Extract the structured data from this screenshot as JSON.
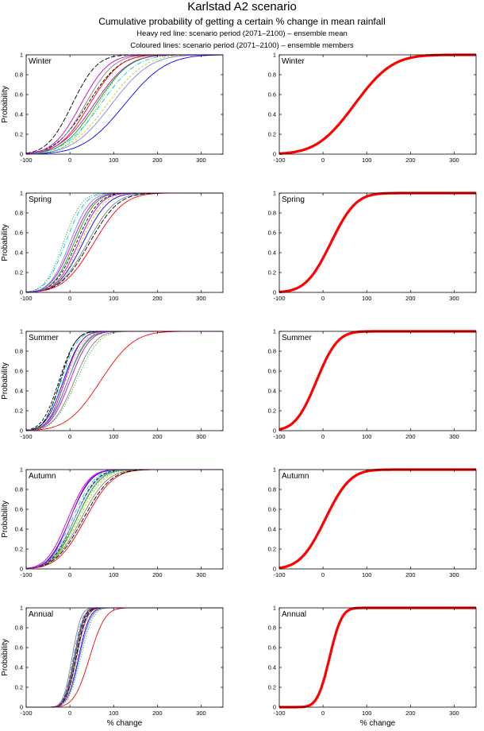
{
  "header": {
    "title": "Karlstad A2 scenario",
    "subtitle": "Cumulative probability of getting a certain % change in mean rainfall",
    "note_heavy": "Heavy red line: scenario period (2071–2100) – ensemble mean",
    "note_coloured": "Coloured lines: scenario period (2071–2100) – ensemble members"
  },
  "colors": {
    "ensemble_mean": "#ff0000"
  },
  "member_colors": [
    "#000000",
    "#0000ff",
    "#00aa00",
    "#ff0000",
    "#00cccc",
    "#cc00cc",
    "#cccc00",
    "#808080",
    "#7f7fff",
    "#000000",
    "#00aa00",
    "#cc00cc"
  ],
  "chart_data": [
    {
      "type": "line",
      "panel": "Winter",
      "column": "ensemble members",
      "ylabel": "Probability",
      "xlabel": "",
      "xlim": [
        -100,
        350
      ],
      "ylim": [
        0,
        1
      ],
      "xticks": [
        "-100",
        "0",
        "100",
        "200",
        "300"
      ],
      "yticks": [
        "0",
        "0.2",
        "0.4",
        "0.6",
        "0.8",
        "1"
      ],
      "curve": "cumulative normal",
      "members": [
        {
          "median": 40,
          "spread": 58
        },
        {
          "median": 125,
          "spread": 75
        },
        {
          "median": 60,
          "spread": 60
        },
        {
          "median": 45,
          "spread": 55
        },
        {
          "median": 70,
          "spread": 65
        },
        {
          "median": 55,
          "spread": 62
        },
        {
          "median": 85,
          "spread": 68
        },
        {
          "median": 35,
          "spread": 52
        },
        {
          "median": 95,
          "spread": 70
        },
        {
          "median": 5,
          "spread": 45
        },
        {
          "median": 65,
          "spread": 55
        },
        {
          "median": 25,
          "spread": 50
        }
      ]
    },
    {
      "type": "line",
      "panel": "Winter",
      "column": "ensemble mean",
      "ylabel": "",
      "xlabel": "",
      "xlim": [
        -100,
        350
      ],
      "ylim": [
        0,
        1
      ],
      "xticks": [
        "-100",
        "0",
        "100",
        "200",
        "300"
      ],
      "yticks": [
        "0",
        "0.2",
        "0.4",
        "0.6",
        "0.8",
        "1"
      ],
      "curve": "cumulative normal",
      "mean": {
        "median": 72,
        "spread": 68
      }
    },
    {
      "type": "line",
      "panel": "Spring",
      "column": "ensemble members",
      "ylabel": "Probability",
      "xlabel": "",
      "xlim": [
        -100,
        350
      ],
      "ylim": [
        0,
        1
      ],
      "xticks": [
        "-100",
        "0",
        "100",
        "200",
        "300"
      ],
      "yticks": [
        "0",
        "0.2",
        "0.4",
        "0.6",
        "0.8",
        "1"
      ],
      "curve": "cumulative normal",
      "members": [
        {
          "median": 15,
          "spread": 40
        },
        {
          "median": 30,
          "spread": 45
        },
        {
          "median": 10,
          "spread": 38
        },
        {
          "median": 55,
          "spread": 55
        },
        {
          "median": -10,
          "spread": 35
        },
        {
          "median": 5,
          "spread": 38
        },
        {
          "median": 25,
          "spread": 42
        },
        {
          "median": 40,
          "spread": 50
        },
        {
          "median": 0,
          "spread": 36
        },
        {
          "median": 45,
          "spread": 52
        },
        {
          "median": -15,
          "spread": 33
        },
        {
          "median": 20,
          "spread": 40
        }
      ]
    },
    {
      "type": "line",
      "panel": "Spring",
      "column": "ensemble mean",
      "ylabel": "",
      "xlabel": "",
      "xlim": [
        -100,
        350
      ],
      "ylim": [
        0,
        1
      ],
      "xticks": [
        "-100",
        "0",
        "100",
        "200",
        "300"
      ],
      "yticks": [
        "0",
        "0.2",
        "0.4",
        "0.6",
        "0.8",
        "1"
      ],
      "curve": "cumulative normal",
      "mean": {
        "median": 18,
        "spread": 45
      }
    },
    {
      "type": "line",
      "panel": "Summer",
      "column": "ensemble members",
      "ylabel": "Probability",
      "xlabel": "",
      "xlim": [
        -100,
        350
      ],
      "ylim": [
        0,
        1
      ],
      "xticks": [
        "-100",
        "0",
        "100",
        "200",
        "300"
      ],
      "yticks": [
        "0",
        "0.2",
        "0.4",
        "0.6",
        "0.8",
        "1"
      ],
      "curve": "cumulative normal",
      "members": [
        {
          "median": -25,
          "spread": 30
        },
        {
          "median": -15,
          "spread": 32
        },
        {
          "median": -5,
          "spread": 35
        },
        {
          "median": 70,
          "spread": 60
        },
        {
          "median": -20,
          "spread": 30
        },
        {
          "median": 0,
          "spread": 35
        },
        {
          "median": -10,
          "spread": 33
        },
        {
          "median": 10,
          "spread": 38
        },
        {
          "median": -5,
          "spread": 33
        },
        {
          "median": -22,
          "spread": 28
        },
        {
          "median": 15,
          "spread": 40
        },
        {
          "median": -12,
          "spread": 30
        }
      ]
    },
    {
      "type": "line",
      "panel": "Summer",
      "column": "ensemble mean",
      "ylabel": "",
      "xlabel": "",
      "xlim": [
        -100,
        350
      ],
      "ylim": [
        0,
        1
      ],
      "xticks": [
        "-100",
        "0",
        "100",
        "200",
        "300"
      ],
      "yticks": [
        "0",
        "0.2",
        "0.4",
        "0.6",
        "0.8",
        "1"
      ],
      "curve": "cumulative normal",
      "mean": {
        "median": -15,
        "spread": 38
      }
    },
    {
      "type": "line",
      "panel": "Autumn",
      "column": "ensemble members",
      "ylabel": "Probability",
      "xlabel": "",
      "xlim": [
        -100,
        350
      ],
      "ylim": [
        0,
        1
      ],
      "xticks": [
        "-100",
        "0",
        "100",
        "200",
        "300"
      ],
      "yticks": [
        "0",
        "0.2",
        "0.4",
        "0.6",
        "0.8",
        "1"
      ],
      "curve": "cumulative normal",
      "members": [
        {
          "median": 10,
          "spread": 40
        },
        {
          "median": 0,
          "spread": 38
        },
        {
          "median": 15,
          "spread": 42
        },
        {
          "median": 35,
          "spread": 50
        },
        {
          "median": 5,
          "spread": 40
        },
        {
          "median": -5,
          "spread": 38
        },
        {
          "median": 20,
          "spread": 45
        },
        {
          "median": 25,
          "spread": 48
        },
        {
          "median": 10,
          "spread": 42
        },
        {
          "median": 30,
          "spread": 50
        },
        {
          "median": 15,
          "spread": 45
        },
        {
          "median": 0,
          "spread": 36
        }
      ]
    },
    {
      "type": "line",
      "panel": "Autumn",
      "column": "ensemble mean",
      "ylabel": "",
      "xlabel": "",
      "xlim": [
        -100,
        350
      ],
      "ylim": [
        0,
        1
      ],
      "xticks": [
        "-100",
        "0",
        "100",
        "200",
        "300"
      ],
      "yticks": [
        "0",
        "0.2",
        "0.4",
        "0.6",
        "0.8",
        "1"
      ],
      "curve": "cumulative normal",
      "mean": {
        "median": 5,
        "spread": 45
      }
    },
    {
      "type": "line",
      "panel": "Annual",
      "column": "ensemble members",
      "ylabel": "Probability",
      "xlabel": "% change",
      "xlim": [
        -100,
        350
      ],
      "ylim": [
        0,
        1
      ],
      "xticks": [
        "-100",
        "0",
        "100",
        "200",
        "300"
      ],
      "yticks": [
        "0",
        "0.2",
        "0.4",
        "0.6",
        "0.8",
        "1"
      ],
      "curve": "cumulative normal",
      "members": [
        {
          "median": 10,
          "spread": 18
        },
        {
          "median": 20,
          "spread": 20
        },
        {
          "median": 12,
          "spread": 18
        },
        {
          "median": 45,
          "spread": 28
        },
        {
          "median": 8,
          "spread": 17
        },
        {
          "median": 15,
          "spread": 19
        },
        {
          "median": 18,
          "spread": 20
        },
        {
          "median": 5,
          "spread": 16
        },
        {
          "median": 22,
          "spread": 21
        },
        {
          "median": 14,
          "spread": 18
        },
        {
          "median": 25,
          "spread": 22
        },
        {
          "median": 10,
          "spread": 17
        }
      ]
    },
    {
      "type": "line",
      "panel": "Annual",
      "column": "ensemble mean",
      "ylabel": "",
      "xlabel": "% change",
      "xlim": [
        -100,
        350
      ],
      "ylim": [
        0,
        1
      ],
      "xticks": [
        "-100",
        "0",
        "100",
        "200",
        "300"
      ],
      "yticks": [
        "0",
        "0.2",
        "0.4",
        "0.6",
        "0.8",
        "1"
      ],
      "curve": "cumulative normal",
      "mean": {
        "median": 15,
        "spread": 22
      }
    }
  ]
}
